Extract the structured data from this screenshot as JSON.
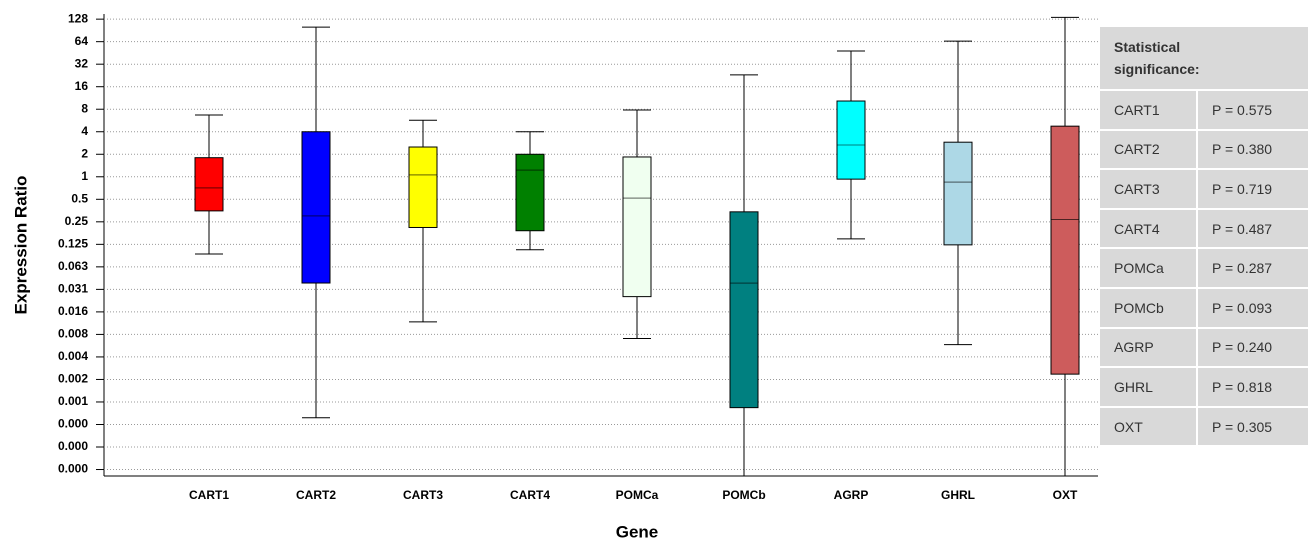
{
  "chart_data": {
    "type": "box",
    "xlabel": "Gene",
    "ylabel": "Expression Ratio",
    "yscale": "log",
    "grid": true,
    "categories": [
      "CART1",
      "CART2",
      "CART3",
      "CART4",
      "POMCa",
      "POMCb",
      "AGRP",
      "GHRL",
      "OXT"
    ],
    "boxes": [
      {
        "color": "#ff0000",
        "min": 0.093,
        "q1": 0.35,
        "median": 0.71,
        "q3": 1.8,
        "max": 6.7
      },
      {
        "color": "#0000ff",
        "min": 0.0006,
        "q1": 0.038,
        "median": 0.3,
        "q3": 4.0,
        "max": 100
      },
      {
        "color": "#ffff00",
        "min": 0.0115,
        "q1": 0.21,
        "median": 1.06,
        "q3": 2.5,
        "max": 5.7
      },
      {
        "color": "#008000",
        "min": 0.106,
        "q1": 0.19,
        "median": 1.23,
        "q3": 2.0,
        "max": 4.0
      },
      {
        "color": "#f0fff0",
        "min": 0.0069,
        "q1": 0.025,
        "median": 0.52,
        "q3": 1.84,
        "max": 7.8
      },
      {
        "color": "#008080",
        "min": 0.0001,
        "q1": 0.00082,
        "median": 0.038,
        "q3": 0.34,
        "max": 23
      },
      {
        "color": "#00ffff",
        "min": 0.148,
        "q1": 0.93,
        "median": 2.66,
        "q3": 10.3,
        "max": 48
      },
      {
        "color": "#add8e6",
        "min": 0.0057,
        "q1": 0.123,
        "median": 0.85,
        "q3": 2.9,
        "max": 65
      },
      {
        "color": "#cd5c5c",
        "min": 0.0001,
        "q1": 0.0023,
        "median": 0.27,
        "q3": 4.75,
        "max": 135
      }
    ],
    "ylim": [
      0.0001,
      150
    ],
    "yticks": [
      128,
      64,
      32,
      16,
      8,
      4,
      2,
      1,
      0.5,
      0.25,
      0.125,
      {
        "value": 0.0625,
        "label": "0.063"
      },
      {
        "value": 0.03125,
        "label": "0.031"
      },
      {
        "value": 0.015625,
        "label": "0.016"
      },
      {
        "value": 0.0078125,
        "label": "0.008"
      },
      {
        "value": 0.00390625,
        "label": "0.004"
      },
      {
        "value": 0.001953125,
        "label": "0.002"
      },
      {
        "value": 0.0009765625,
        "label": "0.001"
      },
      {
        "value": 0.00048828125,
        "label": "0.000"
      },
      {
        "value": 0.000244140625,
        "label": "0.000"
      },
      {
        "value": 0.0001220703125,
        "label": "0.000"
      }
    ]
  },
  "table": {
    "header": "Statistical significance:",
    "rows": [
      [
        "CART1",
        "P = 0.575"
      ],
      [
        "CART2",
        "P = 0.380"
      ],
      [
        "CART3",
        "P = 0.719"
      ],
      [
        "CART4",
        "P = 0.487"
      ],
      [
        "POMCa",
        "P = 0.287"
      ],
      [
        "POMCb",
        "P = 0.093"
      ],
      [
        "AGRP",
        "P = 0.240"
      ],
      [
        "GHRL",
        "P = 0.818"
      ],
      [
        "OXT",
        "P = 0.305"
      ]
    ]
  }
}
